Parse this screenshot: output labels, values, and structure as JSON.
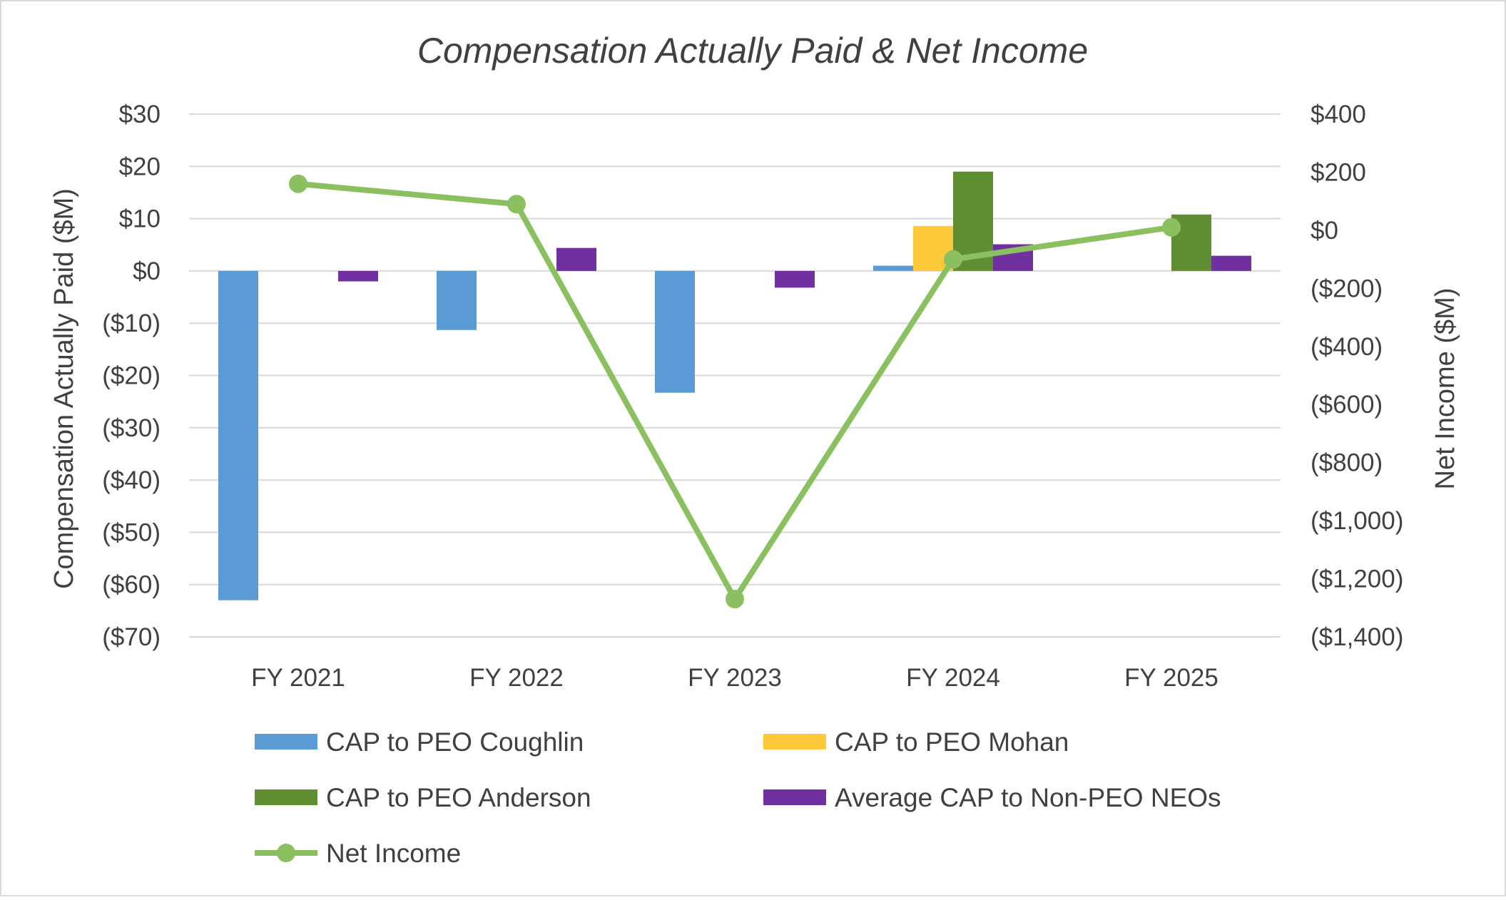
{
  "chart_data": {
    "type": "bar",
    "title": "Compensation Actually Paid & Net Income",
    "categories": [
      "FY 2021",
      "FY 2022",
      "FY 2023",
      "FY 2024",
      "FY 2025"
    ],
    "ylabel": "Compensation Actually Paid ($M)",
    "y2label": "Net Income ($M)",
    "ylim": [
      -70,
      30
    ],
    "y2lim": [
      -1400,
      400
    ],
    "y_ticks": [
      30,
      20,
      10,
      0,
      -10,
      -20,
      -30,
      -40,
      -50,
      -60,
      -70
    ],
    "y_tick_labels": [
      "$30",
      "$20",
      "$10",
      "$0",
      "($10)",
      "($20)",
      "($30)",
      "($40)",
      "($50)",
      "($60)",
      "($70)"
    ],
    "y2_ticks": [
      400,
      200,
      0,
      -200,
      -400,
      -600,
      -800,
      -1000,
      -1200,
      -1400
    ],
    "y2_tick_labels": [
      "$400",
      "$200",
      "$0",
      "($200)",
      "($400)",
      "($600)",
      "($800)",
      "($1,000)",
      "($1,200)",
      "($1,400)"
    ],
    "grid": true,
    "legend_position": "bottom",
    "series": [
      {
        "name": "CAP to PEO Coughlin",
        "type": "bar",
        "axis": "left",
        "color": "#5b9bd5",
        "values": [
          -63,
          -11.3,
          -23.3,
          1.0,
          null
        ]
      },
      {
        "name": "CAP to PEO Mohan",
        "type": "bar",
        "axis": "left",
        "color": "#ffc93c",
        "values": [
          null,
          null,
          null,
          8.6,
          null
        ]
      },
      {
        "name": "CAP to PEO Anderson",
        "type": "bar",
        "axis": "left",
        "color": "#5f8f32",
        "values": [
          null,
          null,
          null,
          19,
          10.8
        ]
      },
      {
        "name": "Average CAP to Non-PEO NEOs",
        "type": "bar",
        "axis": "left",
        "color": "#7030a0",
        "values": [
          -2,
          4.4,
          -3.2,
          5.1,
          2.9
        ]
      },
      {
        "name": "Net Income",
        "type": "line",
        "axis": "right",
        "color": "#8bc060",
        "values": [
          160,
          90,
          -1270,
          -100,
          10
        ]
      }
    ]
  }
}
